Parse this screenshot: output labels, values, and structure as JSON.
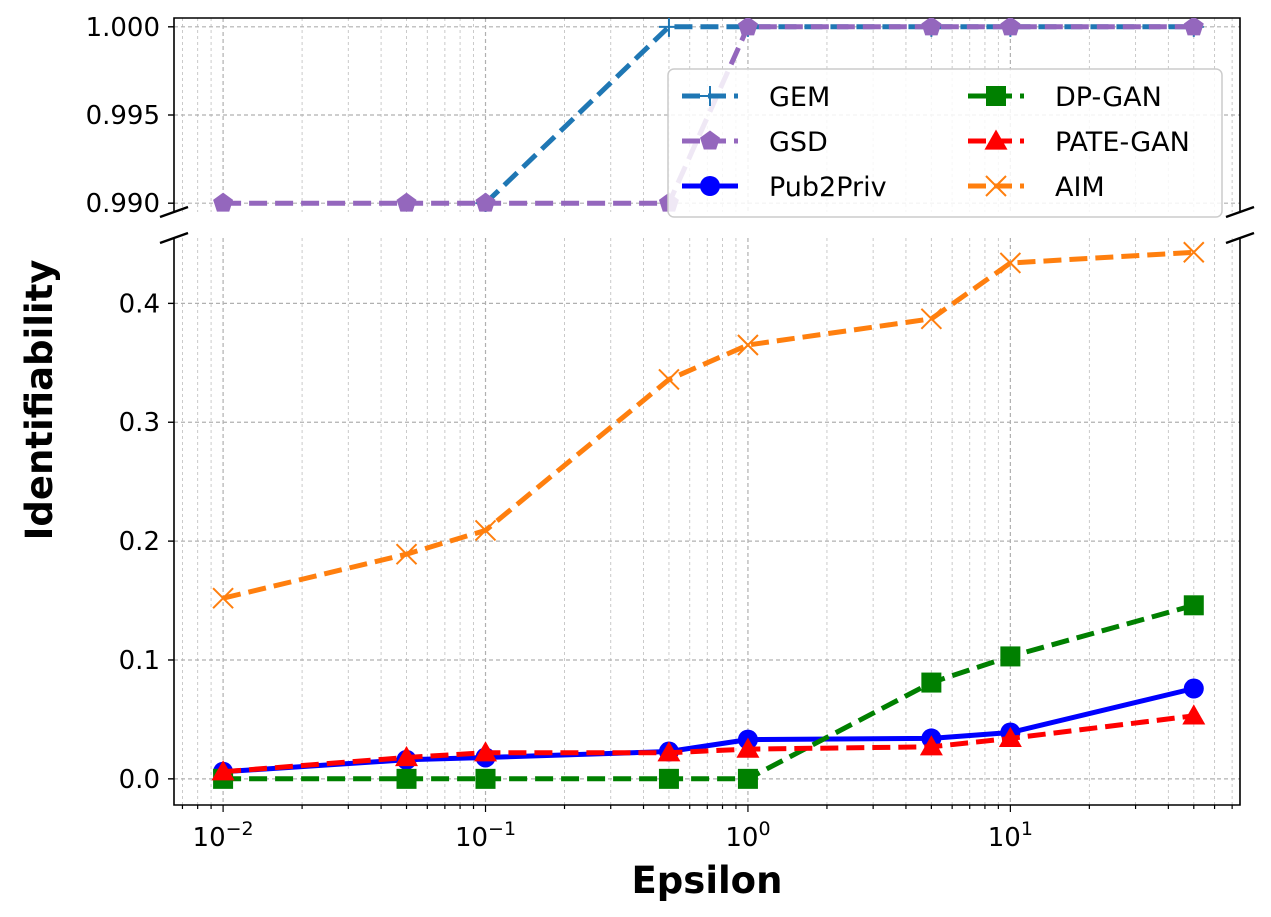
{
  "chart_data": {
    "type": "line",
    "xscale": "log",
    "xlabel": "Epsilon",
    "ylabel": "Identifiability",
    "x": [
      0.01,
      0.05,
      0.1,
      0.5,
      1,
      5,
      10,
      50
    ],
    "xlim": [
      0.0065,
      75
    ],
    "top_panel": {
      "ylim": [
        0.9895,
        1.0005
      ],
      "ticks": [
        "0.990",
        "0.995",
        "1.000"
      ],
      "tick_values": [
        0.99,
        0.995,
        1.0
      ]
    },
    "bottom_panel": {
      "ylim": [
        -0.022,
        0.455
      ],
      "ticks": [
        "0.0",
        "0.1",
        "0.2",
        "0.3",
        "0.4"
      ],
      "tick_values": [
        0.0,
        0.1,
        0.2,
        0.3,
        0.4
      ]
    },
    "x_ticks": [
      {
        "value": 0.01,
        "base": "10",
        "exp": "−2"
      },
      {
        "value": 0.1,
        "base": "10",
        "exp": "−1"
      },
      {
        "value": 1,
        "base": "10",
        "exp": "0"
      },
      {
        "value": 10,
        "base": "10",
        "exp": "1"
      }
    ],
    "series": [
      {
        "name": "GEM",
        "color": "#1f77b4",
        "dash": true,
        "marker": "plus",
        "panel": "top",
        "values": [
          0.99,
          0.99,
          0.99,
          1.0,
          1.0,
          1.0,
          1.0,
          1.0
        ],
        "visible_from": 2
      },
      {
        "name": "GSD",
        "color": "#9467bd",
        "dash": true,
        "marker": "pentagon",
        "panel": "top",
        "values": [
          0.99,
          0.99,
          0.99,
          0.99,
          1.0,
          1.0,
          1.0,
          1.0
        ]
      },
      {
        "name": "Pub2Priv",
        "color": "#0000ff",
        "dash": false,
        "marker": "circle",
        "panel": "bottom",
        "values": [
          0.006,
          0.016,
          0.018,
          0.023,
          0.033,
          0.034,
          0.039,
          0.076
        ]
      },
      {
        "name": "DP-GAN",
        "color": "#008000",
        "dash": true,
        "marker": "square",
        "panel": "bottom",
        "values": [
          0.0,
          0.0,
          0.0,
          0.0,
          0.0,
          0.081,
          0.103,
          0.146
        ]
      },
      {
        "name": "PATE-GAN",
        "color": "#ff0000",
        "dash": true,
        "marker": "triangle",
        "panel": "bottom",
        "values": [
          0.006,
          0.018,
          0.022,
          0.022,
          0.025,
          0.027,
          0.034,
          0.053
        ]
      },
      {
        "name": "AIM",
        "color": "#ff7f0e",
        "dash": true,
        "marker": "x",
        "panel": "bottom",
        "values": [
          0.152,
          0.189,
          0.209,
          0.336,
          0.365,
          0.387,
          0.434,
          0.443
        ]
      }
    ],
    "legend": {
      "position": "upper-right",
      "columns": 2,
      "order": [
        "GEM",
        "GSD",
        "Pub2Priv",
        "DP-GAN",
        "PATE-GAN",
        "AIM"
      ]
    }
  }
}
